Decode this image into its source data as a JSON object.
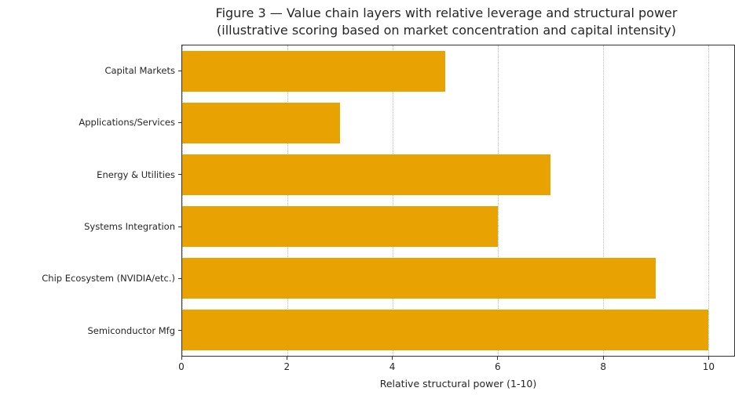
{
  "chart_data": {
    "type": "bar",
    "orientation": "horizontal",
    "title_line1": "Figure 3 — Value chain layers with relative leverage and structural power",
    "title_line2": "(illustrative scoring based on market concentration and capital intensity)",
    "categories": [
      "Capital Markets",
      "Applications/Services",
      "Energy & Utilities",
      "Systems Integration",
      "Chip Ecosystem (NVIDIA/etc.)",
      "Semiconductor Mfg"
    ],
    "values": [
      5,
      3,
      7,
      6,
      9,
      10
    ],
    "xlabel": "Relative structural power (1-10)",
    "xticks": [
      0,
      2,
      4,
      6,
      8,
      10
    ],
    "xlim": [
      0,
      10.5
    ],
    "bar_color": "#E8A202",
    "grid": "dotted-vertical",
    "legend": "none"
  }
}
